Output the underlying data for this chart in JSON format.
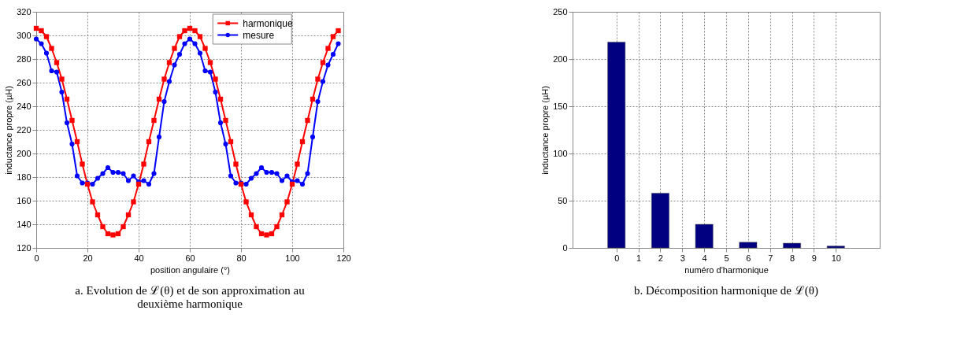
{
  "chart_data": [
    {
      "type": "line",
      "xlabel": "position angulaire (°)",
      "ylabel": "inductance propre (µH)",
      "annotations": [
        "a. Evolution de ℒ(θ) et de son approximation au deuxième harmonique"
      ],
      "x": [
        0,
        2,
        4,
        6,
        8,
        10,
        12,
        14,
        16,
        18,
        20,
        22,
        24,
        26,
        28,
        30,
        32,
        34,
        36,
        38,
        40,
        42,
        44,
        46,
        48,
        50,
        52,
        54,
        56,
        58,
        60,
        62,
        64,
        66,
        68,
        70,
        72,
        74,
        76,
        78,
        80,
        82,
        84,
        86,
        88,
        90,
        92,
        94,
        96,
        98,
        100,
        102,
        104,
        106,
        108,
        110,
        112,
        114,
        116,
        118
      ],
      "xlim": [
        0,
        120
      ],
      "xticks": [
        0,
        20,
        40,
        60,
        80,
        100,
        120
      ],
      "ylim": [
        120,
        320
      ],
      "yticks": [
        120,
        140,
        160,
        180,
        200,
        220,
        240,
        260,
        280,
        300,
        320
      ],
      "grid": true,
      "legend": "top right",
      "series": [
        {
          "name": "harmonique",
          "color": "#ff0000",
          "marker": "square",
          "values": [
            306,
            304,
            299,
            289,
            277,
            263,
            246,
            228,
            210,
            191,
            174,
            159,
            148,
            138,
            132,
            131,
            132,
            138,
            148,
            159,
            174,
            191,
            210,
            228,
            246,
            263,
            277,
            289,
            299,
            304,
            306,
            304,
            299,
            289,
            277,
            263,
            246,
            228,
            210,
            191,
            174,
            159,
            148,
            138,
            132,
            131,
            132,
            138,
            148,
            159,
            174,
            191,
            210,
            228,
            246,
            263,
            277,
            289,
            299,
            304
          ]
        },
        {
          "name": "mesure",
          "color": "#0000ff",
          "marker": "circle",
          "values": [
            297,
            293,
            285,
            270,
            269,
            252,
            226,
            208,
            181,
            175,
            175,
            174,
            179,
            183,
            188,
            184,
            184,
            183,
            177,
            181,
            176,
            177,
            174,
            183,
            214,
            244,
            261,
            275,
            284,
            293,
            297,
            293,
            285,
            270,
            269,
            252,
            226,
            208,
            181,
            175,
            175,
            174,
            179,
            183,
            188,
            184,
            184,
            183,
            177,
            181,
            176,
            177,
            174,
            183,
            214,
            244,
            261,
            275,
            284,
            293
          ]
        }
      ]
    },
    {
      "type": "bar",
      "xlabel": "numéro d'harmonique",
      "ylabel": "inductance propre (µH)",
      "annotations": [
        "b. Décomposition harmonique de ℒ(θ)"
      ],
      "x": [
        0,
        2,
        4,
        6,
        8,
        10
      ],
      "values": [
        218,
        58,
        25,
        6,
        5,
        2
      ],
      "color": "#000080",
      "xlim": [
        -2,
        12
      ],
      "xticks": [
        0,
        1,
        2,
        3,
        4,
        5,
        6,
        7,
        8,
        9,
        10
      ],
      "ylim": [
        0,
        250
      ],
      "yticks": [
        0,
        50,
        100,
        150,
        200,
        250
      ],
      "grid": true
    }
  ]
}
